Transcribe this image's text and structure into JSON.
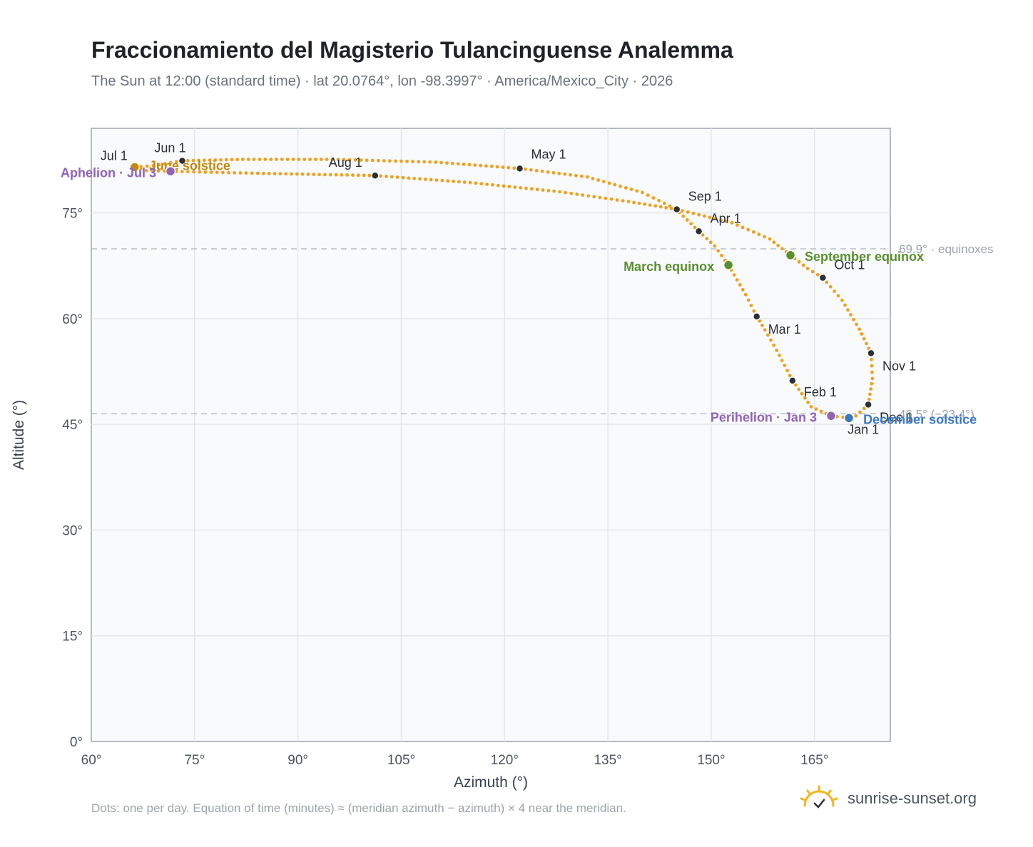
{
  "header": {
    "title": "Fraccionamiento del Magisterio Tulancinguense Analemma",
    "subtitle": "The Sun at 12:00 (standard time) · lat 20.0764°, lon -98.3997° · America/Mexico_City · 2026"
  },
  "footer": {
    "note": "Dots: one per day. Equation of time (minutes) ≈ (meridian azimuth − azimuth) × 4 near the meridian.",
    "brand": "sunrise-sunset.org"
  },
  "colors": {
    "curve": "#f0a020",
    "month_dot": "#2b2f36",
    "equinox": "#5a8f2f",
    "june_solstice": "#c48a10",
    "december_solstice": "#3a78c4",
    "apsis": "#8f64b8",
    "grid": "#e3e7ec",
    "plot_bg": "#f8fafc",
    "reference_line": "#b8bec6",
    "brand_sun": "#f2b51c"
  },
  "chart_data": {
    "type": "scatter",
    "xlabel": "Azimuth (°)",
    "ylabel": "Altitude (°)",
    "xlim": [
      60,
      176
    ],
    "ylim": [
      0,
      87
    ],
    "xticks": [
      "60°",
      "75°",
      "90°",
      "105°",
      "120°",
      "135°",
      "150°",
      "165°"
    ],
    "xtick_values": [
      60,
      75,
      90,
      105,
      120,
      135,
      150,
      165
    ],
    "yticks": [
      "0°",
      "15°",
      "30°",
      "45°",
      "60°",
      "75°"
    ],
    "ytick_values": [
      0,
      15,
      30,
      45,
      60,
      75
    ],
    "grid": true,
    "path_daily": [
      [
        170.0,
        45.9
      ],
      [
        167.4,
        46.2
      ],
      [
        164.5,
        47.5
      ],
      [
        161.8,
        51.2
      ],
      [
        159.5,
        55.5
      ],
      [
        157.8,
        58.4
      ],
      [
        156.6,
        60.3
      ],
      [
        155.0,
        63.4
      ],
      [
        152.5,
        67.6
      ],
      [
        150.5,
        70.3
      ],
      [
        148.2,
        72.4
      ],
      [
        144.8,
        75.6
      ],
      [
        140.0,
        77.9
      ],
      [
        132.0,
        80.1
      ],
      [
        122.2,
        81.3
      ],
      [
        110.0,
        82.2
      ],
      [
        95.0,
        82.6
      ],
      [
        82.0,
        82.6
      ],
      [
        73.2,
        82.4
      ],
      [
        69.0,
        81.7
      ],
      [
        66.3,
        81.5
      ],
      [
        68.0,
        81.0
      ],
      [
        71.5,
        80.9
      ],
      [
        85.0,
        80.6
      ],
      [
        101.2,
        80.3
      ],
      [
        115.0,
        79.3
      ],
      [
        128.0,
        78.0
      ],
      [
        138.0,
        76.6
      ],
      [
        145.0,
        75.5
      ],
      [
        153.0,
        73.6
      ],
      [
        158.5,
        71.3
      ],
      [
        161.5,
        69.0
      ],
      [
        164.0,
        67.1
      ],
      [
        166.2,
        65.8
      ],
      [
        169.0,
        62.6
      ],
      [
        171.5,
        58.5
      ],
      [
        173.2,
        55.1
      ],
      [
        173.4,
        51.5
      ],
      [
        172.8,
        47.8
      ],
      [
        171.0,
        46.2
      ],
      [
        170.0,
        45.9
      ]
    ],
    "month_points": [
      {
        "label": "Jan 1",
        "az": 170.0,
        "alt": 45.9
      },
      {
        "label": "Feb 1",
        "az": 161.8,
        "alt": 51.2
      },
      {
        "label": "Mar 1",
        "az": 156.6,
        "alt": 60.3
      },
      {
        "label": "Apr 1",
        "az": 148.2,
        "alt": 72.4
      },
      {
        "label": "May 1",
        "az": 122.2,
        "alt": 81.3
      },
      {
        "label": "Jun 1",
        "az": 73.2,
        "alt": 82.4
      },
      {
        "label": "Jul 1",
        "az": 66.3,
        "alt": 81.5
      },
      {
        "label": "Aug 1",
        "az": 101.2,
        "alt": 80.3
      },
      {
        "label": "Sep 1",
        "az": 145.0,
        "alt": 75.5
      },
      {
        "label": "Oct 1",
        "az": 166.2,
        "alt": 65.8
      },
      {
        "label": "Nov 1",
        "az": 173.2,
        "alt": 55.1
      },
      {
        "label": "Dec 1",
        "az": 172.8,
        "alt": 47.8
      }
    ],
    "events": [
      {
        "label": "March equinox",
        "az": 152.5,
        "alt": 67.6,
        "kind": "equinox"
      },
      {
        "label": "September equinox",
        "az": 161.5,
        "alt": 69.0,
        "kind": "equinox"
      },
      {
        "label": "June solstice",
        "az": 66.3,
        "alt": 81.5,
        "kind": "june_solstice"
      },
      {
        "label": "December solstice",
        "az": 170.0,
        "alt": 45.9,
        "kind": "december_solstice"
      },
      {
        "label": "Aphelion · Jul 3",
        "az": 71.5,
        "alt": 80.9,
        "kind": "apsis"
      },
      {
        "label": "Perihelion · Jan 3",
        "az": 167.4,
        "alt": 46.2,
        "kind": "apsis"
      }
    ],
    "reference_lines": [
      {
        "y": 69.9,
        "label": "69.9° · equinoxes"
      },
      {
        "y": 46.5,
        "label": "46.5° (−23.4°)"
      }
    ]
  }
}
